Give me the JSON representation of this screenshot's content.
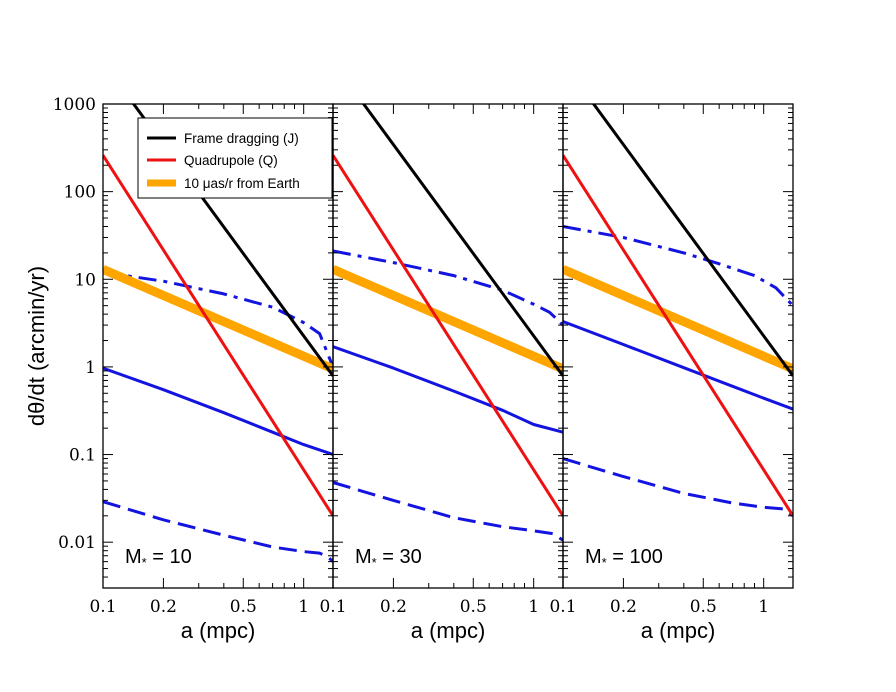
{
  "chart_data": {
    "type": "line",
    "y_axis": {
      "label": "dθ/dt (arcmin/yr)",
      "scale": "log",
      "range": [
        0.003,
        1000
      ],
      "ticks": [
        {
          "value": 0.01,
          "label": "0.01"
        },
        {
          "value": 0.1,
          "label": "0.1"
        },
        {
          "value": 1,
          "label": "1"
        },
        {
          "value": 10,
          "label": "10"
        },
        {
          "value": 100,
          "label": "100"
        },
        {
          "value": 1000,
          "label": "1000"
        }
      ]
    },
    "x_axis": {
      "label": "a (mpc)",
      "scale": "log",
      "range": [
        0.1,
        1.4
      ],
      "ticks": [
        {
          "value": 0.1,
          "label": "0.1"
        },
        {
          "value": 0.2,
          "label": "0.2"
        },
        {
          "value": 0.5,
          "label": "0.5"
        },
        {
          "value": 1,
          "label": "1"
        }
      ]
    },
    "legend": {
      "position": "top-left of first panel",
      "entries": [
        {
          "label": "Frame dragging (J)",
          "color": "#000000",
          "style": "solid"
        },
        {
          "label": "Quadrupole (Q)",
          "color": "#ee1111",
          "style": "solid"
        },
        {
          "label": "10 μas/r from Earth",
          "color": "#ffa500",
          "style": "thick"
        }
      ]
    },
    "panels": [
      {
        "mass_prefix": "M",
        "mass_subscript": "*",
        "mass_value": "= 10",
        "series": [
          {
            "name": "Frame dragging (J)",
            "color": "#000000",
            "style": "solid",
            "points": [
              [
                0.1,
                3000
              ],
              [
                1.4,
                0.79
              ]
            ]
          },
          {
            "name": "Quadrupole (Q)",
            "color": "#ee1111",
            "style": "solid",
            "points": [
              [
                0.1,
                260
              ],
              [
                1.4,
                0.02
              ]
            ]
          },
          {
            "name": "10 μas/r from Earth",
            "color": "#ffa500",
            "style": "thick",
            "points": [
              [
                0.1,
                13
              ],
              [
                1.4,
                0.95
              ]
            ]
          },
          {
            "name": "blue dash-dot",
            "color": "#1414e0",
            "style": "dashdot",
            "points": [
              [
                0.1,
                12
              ],
              [
                0.2,
                9.5
              ],
              [
                0.4,
                6.8
              ],
              [
                0.7,
                4.8
              ],
              [
                1.0,
                3.2
              ],
              [
                1.2,
                2.4
              ],
              [
                1.4,
                1.0
              ]
            ]
          },
          {
            "name": "blue solid",
            "color": "#1414e0",
            "style": "solid",
            "points": [
              [
                0.1,
                0.97
              ],
              [
                0.2,
                0.55
              ],
              [
                0.4,
                0.3
              ],
              [
                0.7,
                0.18
              ],
              [
                1.0,
                0.13
              ],
              [
                1.4,
                0.1
              ]
            ]
          },
          {
            "name": "blue dashed",
            "color": "#1414e0",
            "style": "dashed",
            "points": [
              [
                0.1,
                0.029
              ],
              [
                0.2,
                0.018
              ],
              [
                0.4,
                0.012
              ],
              [
                0.7,
                0.0088
              ],
              [
                1.0,
                0.0078
              ],
              [
                1.2,
                0.0075
              ],
              [
                1.32,
                0.0068
              ],
              [
                1.4,
                0.006
              ]
            ]
          }
        ]
      },
      {
        "mass_prefix": "M",
        "mass_subscript": "*",
        "mass_value": "= 30",
        "series": [
          {
            "name": "Frame dragging (J)",
            "color": "#000000",
            "style": "solid",
            "points": [
              [
                0.1,
                3000
              ],
              [
                1.4,
                0.79
              ]
            ]
          },
          {
            "name": "Quadrupole (Q)",
            "color": "#ee1111",
            "style": "solid",
            "points": [
              [
                0.1,
                260
              ],
              [
                1.4,
                0.02
              ]
            ]
          },
          {
            "name": "10 μas/r from Earth",
            "color": "#ffa500",
            "style": "thick",
            "points": [
              [
                0.1,
                13
              ],
              [
                1.4,
                0.95
              ]
            ]
          },
          {
            "name": "blue dash-dot",
            "color": "#1414e0",
            "style": "dashdot",
            "points": [
              [
                0.1,
                21
              ],
              [
                0.2,
                15.5
              ],
              [
                0.4,
                11
              ],
              [
                0.7,
                7.5
              ],
              [
                1.0,
                5.2
              ],
              [
                1.2,
                4.2
              ],
              [
                1.4,
                3.0
              ]
            ]
          },
          {
            "name": "blue solid",
            "color": "#1414e0",
            "style": "solid",
            "points": [
              [
                0.1,
                1.7
              ],
              [
                0.2,
                0.97
              ],
              [
                0.4,
                0.53
              ],
              [
                0.7,
                0.32
              ],
              [
                1.0,
                0.22
              ],
              [
                1.4,
                0.18
              ]
            ]
          },
          {
            "name": "blue dashed",
            "color": "#1414e0",
            "style": "dashed",
            "points": [
              [
                0.1,
                0.048
              ],
              [
                0.2,
                0.03
              ],
              [
                0.4,
                0.019
              ],
              [
                0.7,
                0.015
              ],
              [
                1.0,
                0.0135
              ],
              [
                1.25,
                0.0125
              ],
              [
                1.4,
                0.0105
              ]
            ]
          }
        ]
      },
      {
        "mass_prefix": "M",
        "mass_subscript": "*",
        "mass_value": "= 100",
        "series": [
          {
            "name": "Frame dragging (J)",
            "color": "#000000",
            "style": "solid",
            "points": [
              [
                0.1,
                3000
              ],
              [
                1.4,
                0.79
              ]
            ]
          },
          {
            "name": "Quadrupole (Q)",
            "color": "#ee1111",
            "style": "solid",
            "points": [
              [
                0.1,
                260
              ],
              [
                1.4,
                0.02
              ]
            ]
          },
          {
            "name": "10 μas/r from Earth",
            "color": "#ffa500",
            "style": "thick",
            "points": [
              [
                0.1,
                13
              ],
              [
                1.4,
                0.95
              ]
            ]
          },
          {
            "name": "blue dash-dot",
            "color": "#1414e0",
            "style": "dashdot",
            "points": [
              [
                0.1,
                40
              ],
              [
                0.2,
                30
              ],
              [
                0.4,
                20
              ],
              [
                0.6,
                15
              ],
              [
                0.9,
                11
              ],
              [
                1.15,
                8
              ],
              [
                1.4,
                5
              ]
            ]
          },
          {
            "name": "blue solid",
            "color": "#1414e0",
            "style": "solid",
            "points": [
              [
                0.1,
                3.3
              ],
              [
                0.2,
                1.8
              ],
              [
                0.4,
                0.98
              ],
              [
                0.7,
                0.6
              ],
              [
                1.0,
                0.44
              ],
              [
                1.4,
                0.33
              ]
            ]
          },
          {
            "name": "blue dashed",
            "color": "#1414e0",
            "style": "dashed",
            "points": [
              [
                0.1,
                0.09
              ],
              [
                0.2,
                0.056
              ],
              [
                0.4,
                0.036
              ],
              [
                0.7,
                0.028
              ],
              [
                1.0,
                0.025
              ],
              [
                1.25,
                0.024
              ],
              [
                1.4,
                0.02
              ]
            ]
          }
        ]
      }
    ]
  }
}
